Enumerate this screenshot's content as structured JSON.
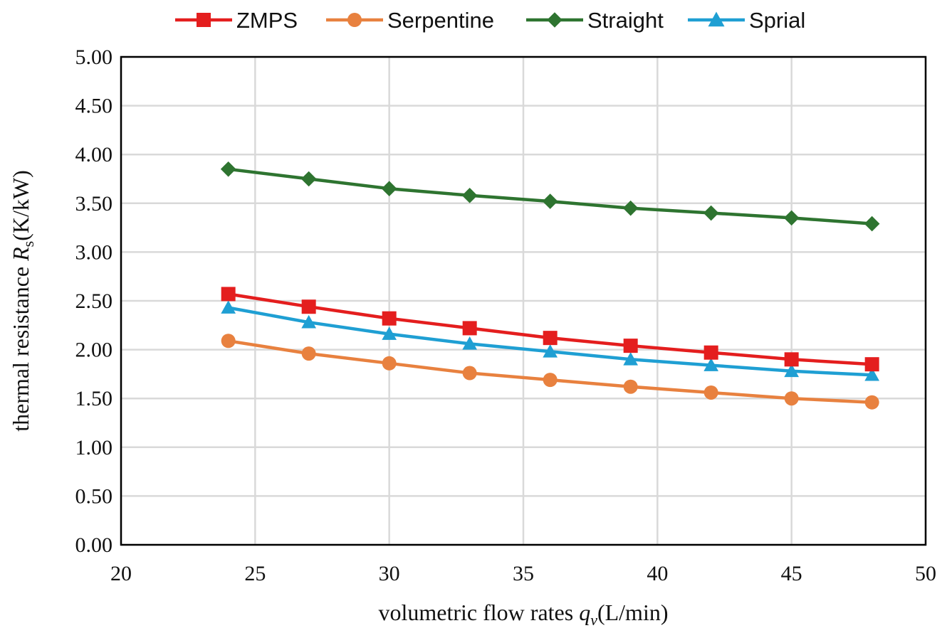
{
  "chart_data": {
    "type": "line",
    "title": "",
    "xlabel": {
      "prefix": "volumetric flow rates ",
      "var": "q",
      "sub": "v",
      "suffix": "(L/min)"
    },
    "ylabel": {
      "prefix": "thermal resistance ",
      "var": "R",
      "sub": "s",
      "suffix": "(K/kW)"
    },
    "xlim": [
      20,
      50
    ],
    "ylim": [
      0,
      5
    ],
    "xticks": [
      "20",
      "25",
      "30",
      "35",
      "40",
      "45",
      "50"
    ],
    "yticks": [
      "0.00",
      "0.50",
      "1.00",
      "1.50",
      "2.00",
      "2.50",
      "3.00",
      "3.50",
      "4.00",
      "4.50",
      "5.00"
    ],
    "grid": true,
    "legend_position": "top-center",
    "x": [
      24,
      27,
      30,
      33,
      36,
      39,
      42,
      45,
      48
    ],
    "series": [
      {
        "name": "ZMPS",
        "color": "#e41e1e",
        "marker": "square",
        "values": [
          2.57,
          2.44,
          2.32,
          2.22,
          2.12,
          2.04,
          1.97,
          1.9,
          1.85
        ]
      },
      {
        "name": "Serpentine",
        "color": "#e8813f",
        "marker": "circle",
        "values": [
          2.09,
          1.96,
          1.86,
          1.76,
          1.69,
          1.62,
          1.56,
          1.5,
          1.46
        ]
      },
      {
        "name": "Straight",
        "color": "#2e7430",
        "marker": "diamond",
        "values": [
          3.85,
          3.75,
          3.65,
          3.58,
          3.52,
          3.45,
          3.4,
          3.35,
          3.29
        ]
      },
      {
        "name": "Sprial",
        "color": "#1f9fd3",
        "marker": "triangle",
        "values": [
          2.43,
          2.28,
          2.16,
          2.06,
          1.98,
          1.9,
          1.84,
          1.78,
          1.74
        ]
      }
    ]
  }
}
